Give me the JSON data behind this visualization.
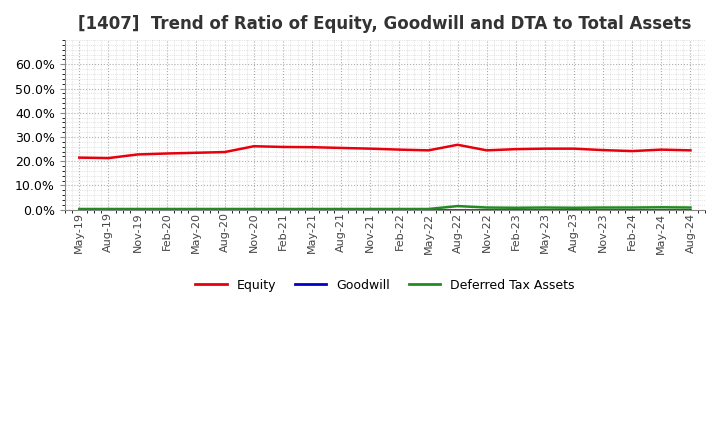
{
  "title": "[1407]  Trend of Ratio of Equity, Goodwill and DTA to Total Assets",
  "title_fontsize": 12,
  "x_labels": [
    "May-19",
    "Aug-19",
    "Nov-19",
    "Feb-20",
    "May-20",
    "Aug-20",
    "Nov-20",
    "Feb-21",
    "May-21",
    "Aug-21",
    "Nov-21",
    "Feb-22",
    "May-22",
    "Aug-22",
    "Nov-22",
    "Feb-23",
    "May-23",
    "Aug-23",
    "Nov-23",
    "Feb-24",
    "May-24",
    "Aug-24"
  ],
  "equity": [
    21.5,
    21.3,
    22.8,
    23.2,
    23.5,
    23.8,
    26.2,
    25.9,
    25.8,
    25.5,
    25.2,
    24.8,
    24.5,
    26.8,
    24.5,
    25.0,
    25.2,
    25.2,
    24.6,
    24.2,
    24.8,
    24.5
  ],
  "goodwill": [
    0.05,
    0.05,
    0.05,
    0.05,
    0.05,
    0.05,
    0.05,
    0.05,
    0.05,
    0.05,
    0.05,
    0.05,
    0.05,
    0.05,
    0.05,
    0.05,
    0.05,
    0.05,
    0.05,
    0.05,
    0.05,
    0.05
  ],
  "dta": [
    0.3,
    0.3,
    0.3,
    0.3,
    0.3,
    0.3,
    0.3,
    0.3,
    0.3,
    0.3,
    0.3,
    0.3,
    0.3,
    1.5,
    0.9,
    0.8,
    0.9,
    0.8,
    0.9,
    0.9,
    1.0,
    0.9
  ],
  "equity_color": "#e8000d",
  "goodwill_color": "#0000cd",
  "dta_color": "#228b22",
  "bg_color": "#ffffff",
  "plot_bg_color": "#ffffff",
  "grid_color": "#999999",
  "ylim": [
    0,
    70
  ],
  "yticks": [
    0,
    10,
    20,
    30,
    40,
    50,
    60
  ],
  "legend_labels": [
    "Equity",
    "Goodwill",
    "Deferred Tax Assets"
  ]
}
